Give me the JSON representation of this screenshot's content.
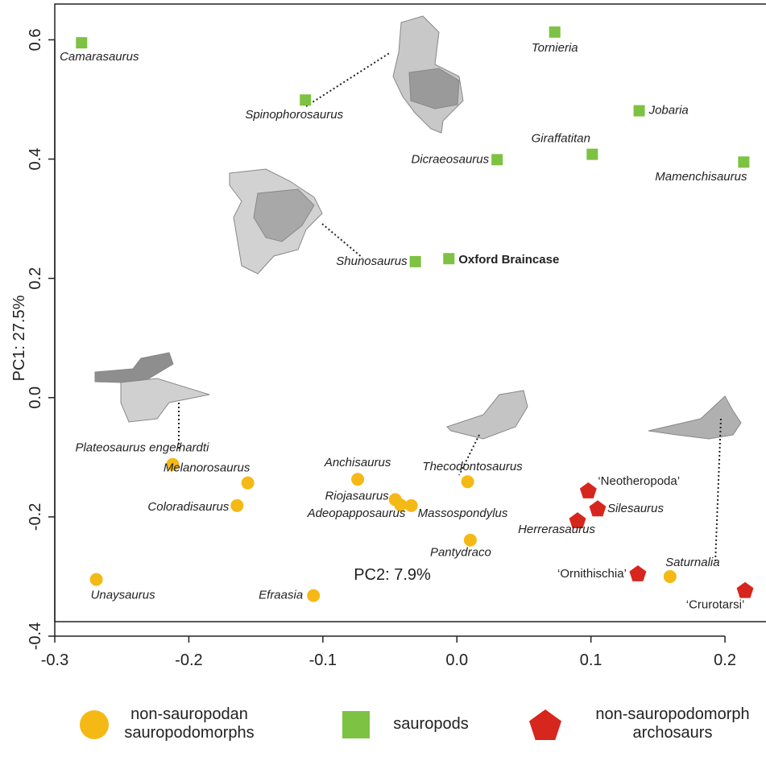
{
  "chart_data": {
    "type": "scatter",
    "x_label": "PC2: 7.9%",
    "y_label": "PC1: 27.5%",
    "xlim": [
      -0.3,
      0.23
    ],
    "ylim": [
      -0.4,
      0.66
    ],
    "xticks": [
      {
        "value": -0.3,
        "label": "-0.3"
      },
      {
        "value": -0.2,
        "label": "-0.2"
      },
      {
        "value": -0.1,
        "label": "-0.1"
      },
      {
        "value": 0,
        "label": "0.0"
      },
      {
        "value": 0.1,
        "label": "0.1"
      },
      {
        "value": 0.2,
        "label": "0.2"
      }
    ],
    "yticks": [
      {
        "value": -0.4,
        "label": "-0.4"
      },
      {
        "value": -0.2,
        "label": "-0.2"
      },
      {
        "value": 0,
        "label": "0.0"
      },
      {
        "value": 0.2,
        "label": "0.2"
      },
      {
        "value": 0.4,
        "label": "0.4"
      },
      {
        "value": 0.6,
        "label": "0.6"
      }
    ],
    "series": [
      {
        "name": "non-sauropodan sauropodomorphs",
        "color": "#f5b915",
        "marker": "circle",
        "labels": [
          "Plateosaurus engelhardti",
          "Melanorosaurus",
          "Coloradisaurus",
          "Anchisaurus",
          "Riojasaurus",
          "Adeopapposaurus",
          "Massospondylus",
          "Thecodontosaurus",
          "Pantydraco",
          "Unaysaurus",
          "Efraasia",
          "Saturnalia"
        ],
        "x": [
          -0.212,
          -0.156,
          -0.164,
          -0.074,
          -0.046,
          -0.042,
          -0.034,
          0.008,
          0.01,
          -0.269,
          -0.107,
          0.159
        ],
        "y": [
          -0.112,
          -0.143,
          -0.181,
          -0.137,
          -0.171,
          -0.18,
          -0.181,
          -0.141,
          -0.239,
          -0.305,
          -0.332,
          -0.3
        ]
      },
      {
        "name": "sauropods",
        "color": "#7dc242",
        "marker": "square",
        "labels": [
          "Camarasaurus",
          "Spinophorosaurus",
          "Tornieria",
          "Jobaria",
          "Giraffatitan",
          "Dicraeosaurus",
          "Mamenchisaurus",
          "Shunosaurus",
          "Oxford Braincase"
        ],
        "x": [
          -0.28,
          -0.113,
          0.073,
          0.136,
          0.101,
          0.03,
          0.214,
          -0.031,
          -0.006
        ],
        "y": [
          0.595,
          0.499,
          0.613,
          0.481,
          0.408,
          0.399,
          0.395,
          0.228,
          0.233
        ]
      },
      {
        "name": "non-sauropodomorph archosaurs",
        "color": "#d7261e",
        "marker": "pentagon",
        "labels": [
          "‘Neotheropoda’",
          "Silesaurus",
          "Herrerasaurus",
          "‘Ornithischia’",
          "‘Crurotarsi’"
        ],
        "x": [
          0.098,
          0.105,
          0.09,
          0.135,
          0.215
        ],
        "y": [
          -0.157,
          -0.187,
          -0.207,
          -0.296,
          -0.324
        ]
      }
    ]
  }
}
